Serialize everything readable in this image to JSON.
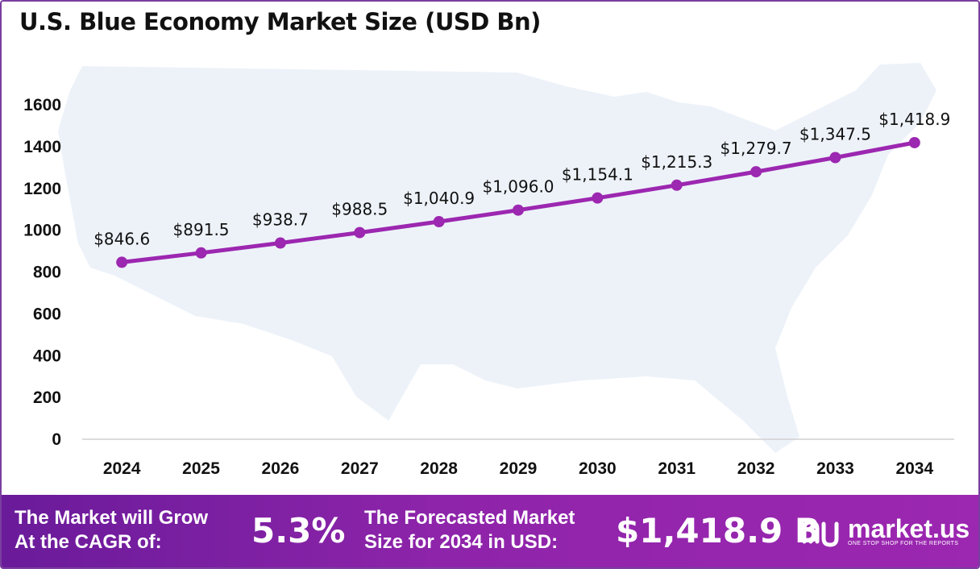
{
  "chart_data": {
    "type": "line",
    "title": "U.S. Blue Economy Market Size (USD Bn)",
    "xlabel": "",
    "ylabel": "",
    "categories": [
      "2024",
      "2025",
      "2026",
      "2027",
      "2028",
      "2029",
      "2030",
      "2031",
      "2032",
      "2033",
      "2034"
    ],
    "values": [
      846.6,
      891.5,
      938.7,
      988.5,
      1040.9,
      1096.0,
      1154.1,
      1215.3,
      1279.7,
      1347.5,
      1418.9
    ],
    "data_labels": [
      "$846.6",
      "$891.5",
      "$938.7",
      "$988.5",
      "$1,040.9",
      "$1,096.0",
      "$1,154.1",
      "$1,215.3",
      "$1,279.7",
      "$1,347.5",
      "$1,418.9"
    ],
    "yticks": [
      0,
      200,
      400,
      600,
      800,
      1000,
      1200,
      1400,
      1600
    ],
    "ylim": [
      0,
      1600
    ],
    "grid": false,
    "legend": "none",
    "line_color": "#9c27b0",
    "marker_color": "#9c27b0"
  },
  "footer": {
    "cagr_label_line1": "The Market will Grow",
    "cagr_label_line2": "At the CAGR of:",
    "cagr_value": "5.3%",
    "forecast_label_line1": "The Forecasted Market",
    "forecast_label_line2": "Size for 2034 in USD:",
    "forecast_value": "$1,418.9 B",
    "brand_name": "market.us",
    "brand_tagline": "ONE STOP SHOP FOR THE REPORTS",
    "brand_icon": "market-us-logo-icon"
  },
  "colors": {
    "accent": "#9c27b0",
    "footer_start": "#6a1b9a",
    "footer_end": "#9c27b0",
    "map_fill": "#edf2f9"
  }
}
